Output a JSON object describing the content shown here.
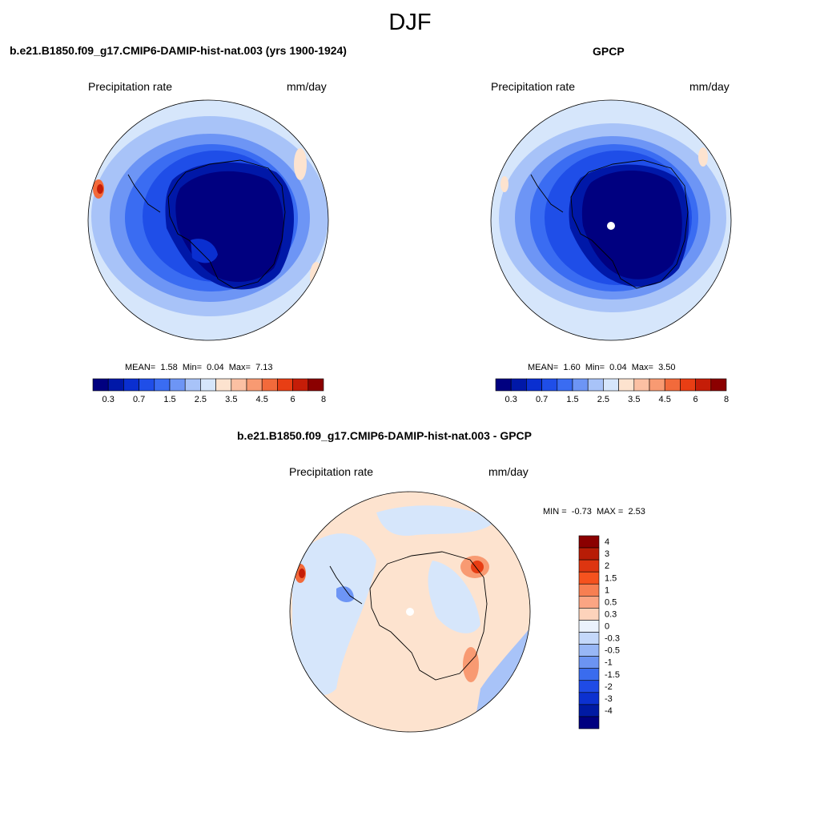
{
  "page_title": "DJF",
  "panels": {
    "model": {
      "title": "b.e21.B1850.f09_g17.CMIP6-DAMIP-hist-nat.003 (yrs 1900-1924)",
      "variable": "Precipitation rate",
      "units": "mm/day",
      "stats": {
        "mean_label": "MEAN=",
        "mean": "1.58",
        "min_label": "Min=",
        "min": "0.04",
        "max_label": "Max=",
        "max": "7.13"
      }
    },
    "obs": {
      "title": "GPCP",
      "variable": "Precipitation rate",
      "units": "mm/day",
      "stats": {
        "mean_label": "MEAN=",
        "mean": "1.60",
        "min_label": "Min=",
        "min": "0.04",
        "max_label": "Max=",
        "max": "3.50"
      }
    },
    "diff": {
      "title": "b.e21.B1850.f09_g17.CMIP6-DAMIP-hist-nat.003 - GPCP",
      "variable": "Precipitation rate",
      "units": "mm/day",
      "stats": {
        "min_label": "MIN =",
        "min": "-0.73",
        "max_label": "MAX =",
        "max": "2.53"
      }
    }
  },
  "colorbars": {
    "abs": {
      "colors": [
        "#000080",
        "#0018a8",
        "#0a2fd0",
        "#1f4ee8",
        "#3a6cf2",
        "#6d95f5",
        "#a8c3f8",
        "#d6e6fb",
        "#fde3cf",
        "#fbc0a3",
        "#f89a72",
        "#f26a3b",
        "#e83e14",
        "#c51d08",
        "#8b0000"
      ],
      "tick_labels": [
        "0.3",
        "0.7",
        "1.5",
        "2.5",
        "3.5",
        "4.5",
        "6",
        "8"
      ]
    },
    "diff": {
      "colors": [
        "#8b0000",
        "#b81c06",
        "#dd3510",
        "#f5521e",
        "#f77f52",
        "#fba583",
        "#fdd3bb",
        "#eaf2fd",
        "#c4d8fa",
        "#98b7f6",
        "#6c94f2",
        "#3a6cee",
        "#1f4be6",
        "#0c31d0",
        "#001aa3",
        "#000080"
      ],
      "tick_labels": [
        "4",
        "3",
        "2",
        "1.5",
        "1",
        "0.5",
        "0.3",
        "0",
        "-0.3",
        "-0.5",
        "-1",
        "-1.5",
        "-2",
        "-3",
        "-4"
      ]
    }
  }
}
